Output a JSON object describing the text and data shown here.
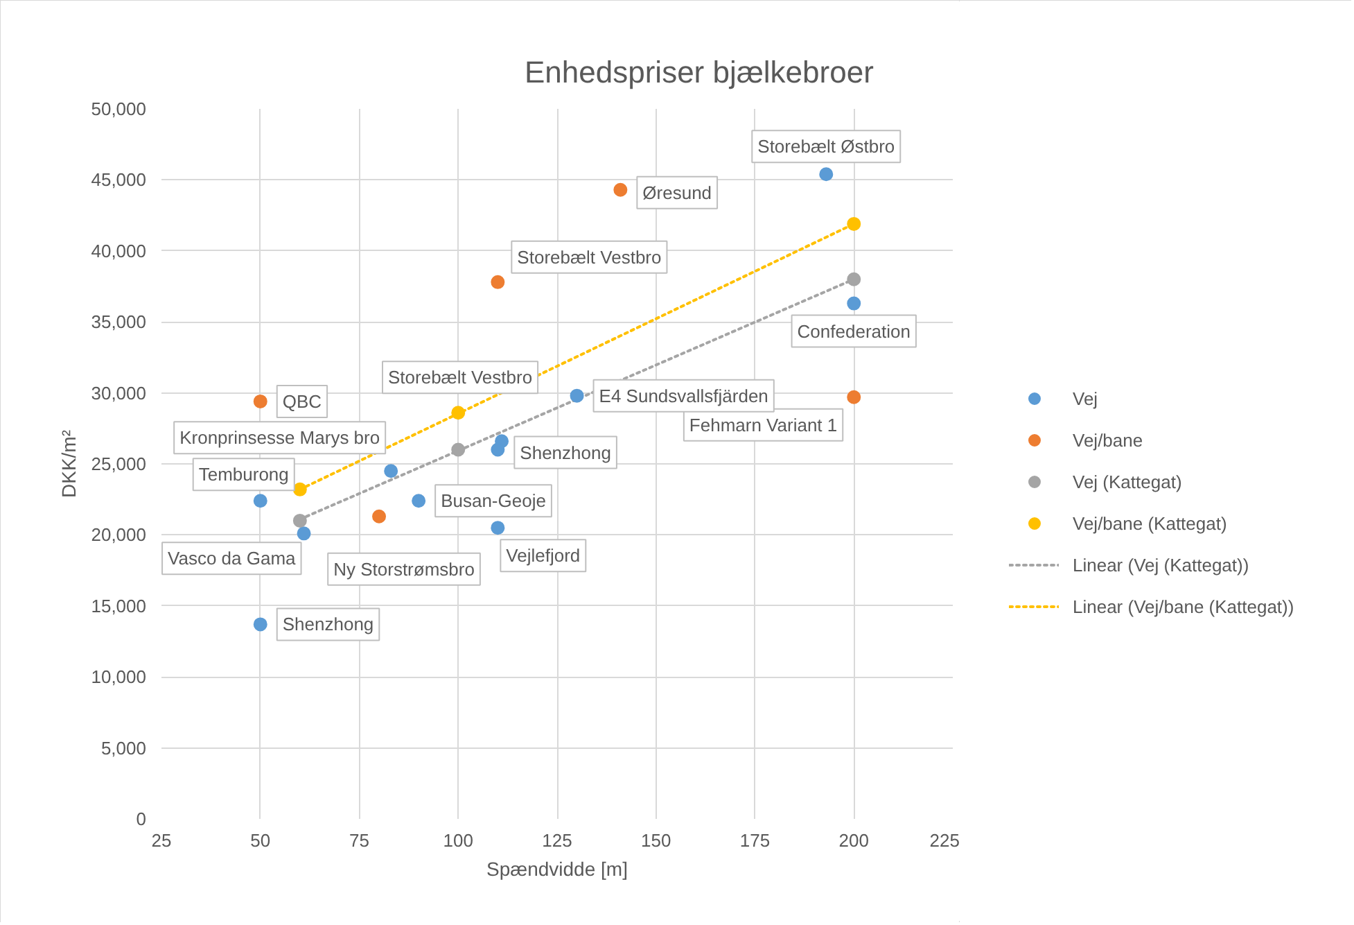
{
  "chart_data": {
    "type": "scatter",
    "title": "Enhedspriser bjælkebroer",
    "xlabel": "Spændvidde [m]",
    "ylabel": "DKK/m²",
    "xlim": [
      25,
      225
    ],
    "xticks": [
      25,
      50,
      75,
      100,
      125,
      150,
      175,
      200,
      225
    ],
    "ylim": [
      0,
      50000
    ],
    "yticks": [
      0,
      {
        "value": 5000,
        "label": "5,000"
      },
      {
        "value": 10000,
        "label": "10,000"
      },
      {
        "value": 15000,
        "label": "15,000"
      },
      {
        "value": 20000,
        "label": "20,000"
      },
      {
        "value": 25000,
        "label": "25,000"
      },
      {
        "value": 30000,
        "label": "30,000"
      },
      {
        "value": 35000,
        "label": "35,000"
      },
      {
        "value": 40000,
        "label": "40,000"
      },
      {
        "value": 45000,
        "label": "45,000"
      },
      {
        "value": 50000,
        "label": "50,000"
      }
    ],
    "grid": true,
    "legend": "right",
    "marker": "circle",
    "series": [
      {
        "name": "Vej",
        "color": "#5b9bd5",
        "x": [
          193,
          200,
          111,
          110,
          130,
          83,
          50,
          90,
          61,
          110,
          50
        ],
        "values": [
          45400,
          36300,
          26600,
          26000,
          29800,
          24500,
          22400,
          22400,
          20100,
          20500,
          13700
        ]
      },
      {
        "name": "Vej/bane",
        "color": "#ed7d31",
        "x": [
          141,
          110,
          200,
          50,
          80
        ],
        "values": [
          44300,
          37800,
          29700,
          29400,
          21300
        ]
      },
      {
        "name": "Vej (Kattegat)",
        "color": "#a5a5a5",
        "x": [
          60,
          100,
          200
        ],
        "values": [
          21000,
          26000,
          38000
        ]
      },
      {
        "name": "Vej/bane (Kattegat)",
        "color": "#ffc000",
        "x": [
          60,
          100,
          200
        ],
        "values": [
          23200,
          28600,
          41900
        ]
      },
      {
        "name": "Linear (Vej (Kattegat))",
        "type": "line",
        "color": "#a5a5a5",
        "line_style": "dotted",
        "marker": "none",
        "x": [
          60,
          200
        ],
        "values": [
          21100,
          38000
        ]
      },
      {
        "name": "Linear (Vej/bane (Kattegat))",
        "type": "line",
        "color": "#ffc000",
        "line_style": "dotted",
        "marker": "none",
        "x": [
          60,
          200
        ],
        "values": [
          23200,
          41900
        ]
      }
    ],
    "annotations": [
      {
        "text": "Storebælt Østbro",
        "x": 193,
        "y": 45400
      },
      {
        "text": "Øresund",
        "x": 141,
        "y": 44300
      },
      {
        "text": "Storebælt Vestbro",
        "x": 110,
        "y": 37800
      },
      {
        "text": "Confederation",
        "x": 200,
        "y": 36300
      },
      {
        "text": "Fehmarn Variant 1",
        "x": 200,
        "y": 29700
      },
      {
        "text": "QBC",
        "x": 50,
        "y": 29400
      },
      {
        "text": "Storebælt Vestbro",
        "x": 111,
        "y": 26600
      },
      {
        "text": "Shenzhong",
        "x": 110,
        "y": 26000
      },
      {
        "text": "E4 Sundsvallsfjärden",
        "x": 130,
        "y": 29800
      },
      {
        "text": "Kronprinsesse Marys bro",
        "x": 83,
        "y": 24500
      },
      {
        "text": "Temburong",
        "x": 50,
        "y": 22400
      },
      {
        "text": "Busan-Geoje",
        "x": 90,
        "y": 22400
      },
      {
        "text": "Vasco da Gama",
        "x": 61,
        "y": 20100
      },
      {
        "text": "Ny Storstrømsbro",
        "x": 80,
        "y": 21300
      },
      {
        "text": "Vejlefjord",
        "x": 110,
        "y": 20500
      },
      {
        "text": "Shenzhong",
        "x": 50,
        "y": 13700
      }
    ]
  }
}
